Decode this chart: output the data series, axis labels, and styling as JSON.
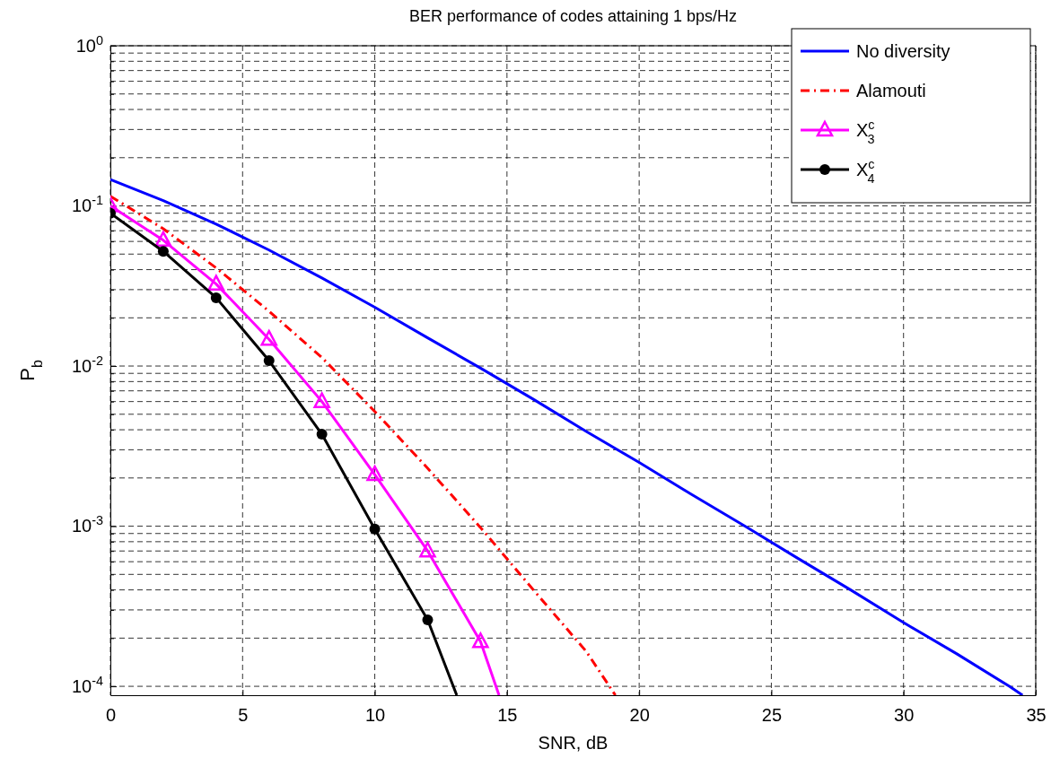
{
  "chart_data": {
    "type": "line",
    "title": "BER performance of codes attaining 1 bps/Hz",
    "xlabel": "SNR, dB",
    "ylabel": "P$_{b}$",
    "log": "y",
    "grid": true,
    "legend": "top right",
    "xlim": [
      0,
      35
    ],
    "xticks": [
      0,
      5,
      10,
      15,
      20,
      25,
      30,
      35
    ],
    "ylim": [
      8.8e-05,
      1
    ],
    "yticks": [
      {
        "value": 0.0001,
        "label": "10$^{-4}$"
      },
      {
        "value": 0.0002,
        "label": null
      },
      {
        "value": 0.0003,
        "label": null
      },
      {
        "value": 0.0004,
        "label": null
      },
      {
        "value": 0.0005,
        "label": null
      },
      {
        "value": 0.0006,
        "label": null
      },
      {
        "value": 0.0007,
        "label": null
      },
      {
        "value": 0.0008,
        "label": null
      },
      {
        "value": 0.0009,
        "label": null
      },
      {
        "value": 0.001,
        "label": "10$^{-3}$"
      },
      {
        "value": 0.002,
        "label": null
      },
      {
        "value": 0.003,
        "label": null
      },
      {
        "value": 0.004,
        "label": null
      },
      {
        "value": 0.005,
        "label": null
      },
      {
        "value": 0.006,
        "label": null
      },
      {
        "value": 0.007,
        "label": null
      },
      {
        "value": 0.008,
        "label": null
      },
      {
        "value": 0.009,
        "label": null
      },
      {
        "value": 0.01,
        "label": "10$^{-2}$"
      },
      {
        "value": 0.02,
        "label": null
      },
      {
        "value": 0.03,
        "label": null
      },
      {
        "value": 0.04,
        "label": null
      },
      {
        "value": 0.05,
        "label": null
      },
      {
        "value": 0.06,
        "label": null
      },
      {
        "value": 0.07,
        "label": null
      },
      {
        "value": 0.08,
        "label": null
      },
      {
        "value": 0.09,
        "label": null
      },
      {
        "value": 0.1,
        "label": "10$^{-1}$"
      },
      {
        "value": 0.2,
        "label": null
      },
      {
        "value": 0.3,
        "label": null
      },
      {
        "value": 0.4,
        "label": null
      },
      {
        "value": 0.5,
        "label": null
      },
      {
        "value": 0.6,
        "label": null
      },
      {
        "value": 0.7,
        "label": null
      },
      {
        "value": 0.8,
        "label": null
      },
      {
        "value": 0.9,
        "label": null
      },
      {
        "value": 1,
        "label": "10$^{0}$"
      }
    ],
    "series": [
      {
        "name": "No diversity",
        "color": "#0000ff",
        "line_style": "solid",
        "marker": "none",
        "x": [
          0,
          2,
          4,
          6,
          8,
          10,
          12,
          14,
          16,
          18,
          20,
          22,
          24,
          26,
          28,
          30,
          32,
          34,
          34.5
        ],
        "values": [
          0.146,
          0.108,
          0.077,
          0.053,
          0.0355,
          0.0233,
          0.015,
          0.0097,
          0.0062,
          0.0039,
          0.0025,
          0.00157,
          0.001,
          0.00063,
          0.0004,
          0.00025,
          0.00016,
          0.0001,
          8.8e-05
        ]
      },
      {
        "name": "Alamouti",
        "color": "#ff0000",
        "line_style": "dashdot",
        "marker": "none",
        "x": [
          0,
          2,
          4,
          6,
          8,
          10,
          12,
          14,
          16,
          18,
          19.1
        ],
        "values": [
          0.115,
          0.072,
          0.041,
          0.022,
          0.0113,
          0.0052,
          0.0023,
          0.00098,
          0.0004,
          0.000165,
          8.8e-05
        ]
      },
      {
        "name": "X$^{c}$$_{3}$",
        "color": "#ff00ff",
        "line_style": "solid",
        "marker": "triangle",
        "x": [
          0,
          2,
          4,
          6,
          8,
          10,
          12,
          14,
          14.7
        ],
        "values": [
          0.1,
          0.061,
          0.0325,
          0.0147,
          0.006,
          0.0021,
          0.0007,
          0.00019,
          8.8e-05
        ]
      },
      {
        "name": "X$^{c}$$_{4}$",
        "color": "#000000",
        "line_style": "solid",
        "marker": "circle",
        "x": [
          0,
          2,
          4,
          6,
          8,
          10,
          12,
          13.1
        ],
        "values": [
          0.09,
          0.052,
          0.0267,
          0.0108,
          0.00375,
          0.00096,
          0.00026,
          8.8e-05
        ]
      }
    ]
  }
}
